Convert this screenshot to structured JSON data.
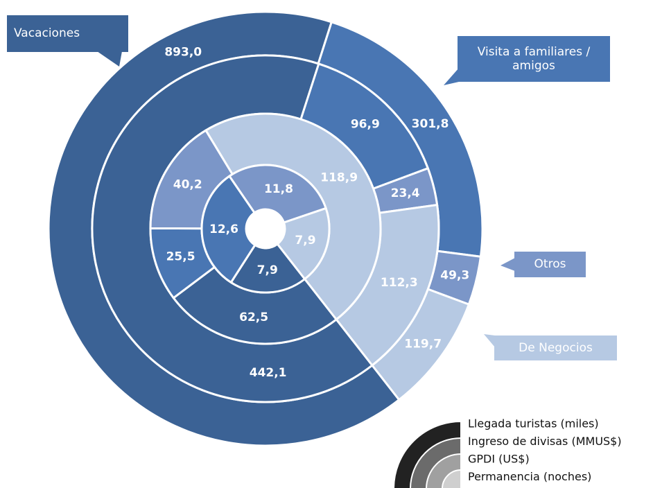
{
  "chart_data": {
    "type": "multi-ring-donut",
    "categories": [
      "Vacaciones",
      "Visita a familiares / amigos",
      "Otros",
      "De Negocios"
    ],
    "colors": [
      "#3b6295",
      "#4976b3",
      "#7b96c8",
      "#b6c9e3"
    ],
    "series": [
      {
        "name": "Llegada turistas (miles)",
        "color": "#222222",
        "values": [
          893.0,
          301.8,
          49.3,
          119.7
        ],
        "value_labels": [
          "893,0",
          "301,8",
          "49,3",
          "119,7"
        ]
      },
      {
        "name": "Ingreso de divisas (MMUS$)",
        "color": "#6b6b6b",
        "values": [
          442.1,
          96.9,
          23.4,
          112.3
        ],
        "value_labels": [
          "442,1",
          "96,9",
          "23,4",
          "112,3"
        ]
      },
      {
        "name": "GPDI (US$)",
        "color": "#a0a0a0",
        "values": [
          62.5,
          25.5,
          40.2,
          118.9
        ],
        "value_labels": [
          "62,5",
          "25,5",
          "40,2",
          "118,9"
        ]
      },
      {
        "name": "Permanencia (noches)",
        "color": "#cfcfcf",
        "values": [
          7.9,
          12.6,
          11.8,
          7.9
        ],
        "value_labels": [
          "7,9",
          "12,6",
          "11,8",
          "7,9"
        ]
      }
    ]
  }
}
